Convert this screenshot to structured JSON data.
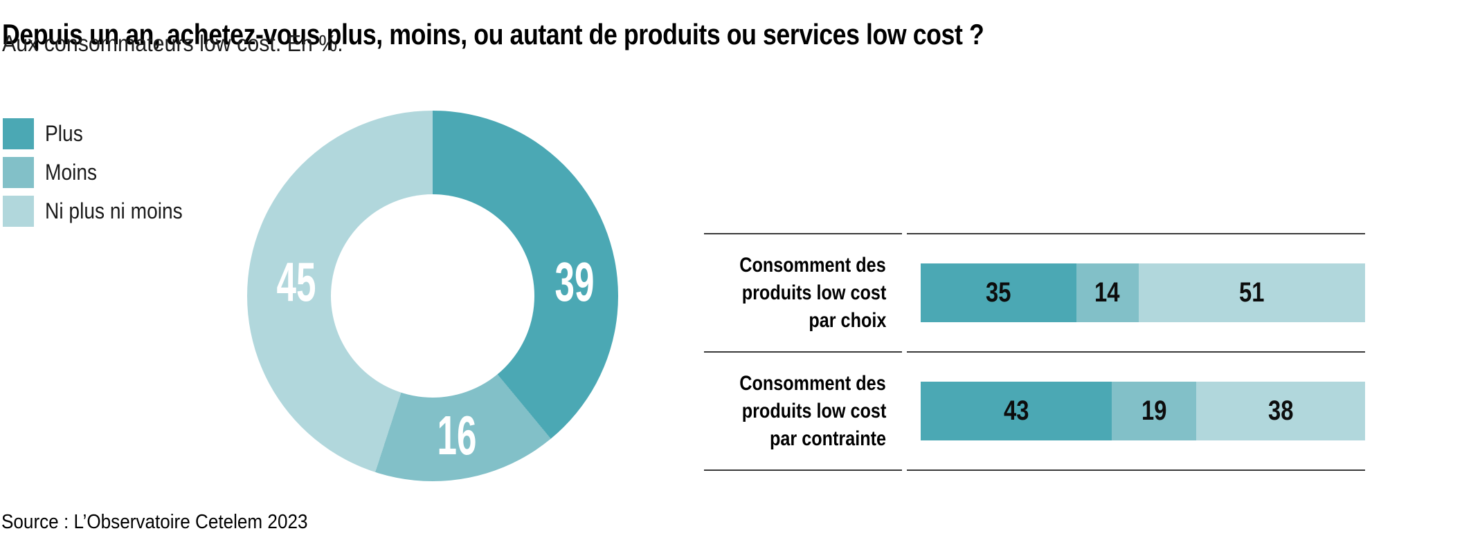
{
  "header": {
    "title": "Depuis un an, achetez-vous plus, moins, ou autant de produits ou services low cost ?",
    "subtitle": "Aux consommateurs low cost. En %."
  },
  "footer": {
    "source": "Source : L’Observatoire Cetelem 2023"
  },
  "colors": {
    "plus": "#4BA8B4",
    "moins": "#82C0C8",
    "ni_plus_ni_moins": "#B1D7DC",
    "rule_line": "#383838",
    "donut_value_text": "#ffffff",
    "bar_value_text": "#0d0d0d"
  },
  "legend": {
    "items": [
      {
        "label": "Plus",
        "color": "#4BA8B4"
      },
      {
        "label": "Moins",
        "color": "#82C0C8"
      },
      {
        "label": "Ni plus ni moins",
        "color": "#B1D7DC"
      }
    ]
  },
  "chart_data": [
    {
      "type": "pie",
      "subtype": "donut",
      "title": "Depuis un an, achetez-vous plus, moins, ou autant de produits ou services low cost ?",
      "unit": "%",
      "categories": [
        "Plus",
        "Moins",
        "Ni plus ni moins"
      ],
      "values": [
        39,
        16,
        45
      ],
      "colors": [
        "#4BA8B4",
        "#82C0C8",
        "#B1D7DC"
      ],
      "start_angle_deg": 0,
      "direction": "clockwise",
      "legend_position": "left",
      "labels_inside": true
    },
    {
      "type": "bar",
      "subtype": "horizontal-stacked",
      "unit": "%",
      "xlim": [
        0,
        100
      ],
      "series_names": [
        "Plus",
        "Moins",
        "Ni plus ni moins"
      ],
      "categories": [
        "Consomment des produits low cost par choix",
        "Consomment des produits low cost par contrainte"
      ],
      "rows": [
        {
          "label_lines": [
            "Consomment des",
            "produits low cost",
            "par choix"
          ],
          "values": [
            35,
            14,
            51
          ]
        },
        {
          "label_lines": [
            "Consomment des",
            "produits low cost",
            "par contrainte"
          ],
          "values": [
            43,
            19,
            38
          ]
        }
      ]
    }
  ]
}
